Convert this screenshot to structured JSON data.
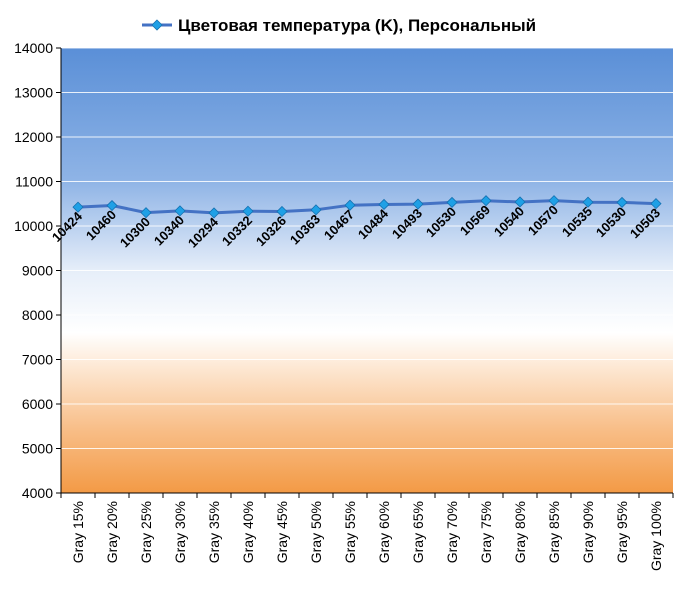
{
  "chart_data": {
    "type": "line",
    "title": "Цветовая температура (K), Персональный",
    "categories": [
      "Gray 15%",
      "Gray 20%",
      "Gray 25%",
      "Gray 30%",
      "Gray 35%",
      "Gray 40%",
      "Gray 45%",
      "Gray 50%",
      "Gray 55%",
      "Gray 60%",
      "Gray 65%",
      "Gray 70%",
      "Gray 75%",
      "Gray 80%",
      "Gray 85%",
      "Gray 90%",
      "Gray 95%",
      "Gray 100%"
    ],
    "series": [
      {
        "name": "Цветовая температура (K), Персональный",
        "values": [
          10424,
          10460,
          10300,
          10340,
          10294,
          10332,
          10326,
          10363,
          10467,
          10484,
          10493,
          10530,
          10569,
          10540,
          10570,
          10535,
          10530,
          10503
        ],
        "color": "#4472c4",
        "marker_color": "#1fa0e6"
      }
    ],
    "ylim": [
      4000,
      14000
    ],
    "yticks": [
      4000,
      5000,
      6000,
      7000,
      8000,
      9000,
      10000,
      11000,
      12000,
      13000,
      14000
    ],
    "grid": true,
    "legend": "top",
    "data_labels": true,
    "background_gradient": [
      "#5b8fd6",
      "#ffffff",
      "#f4a04e"
    ]
  }
}
